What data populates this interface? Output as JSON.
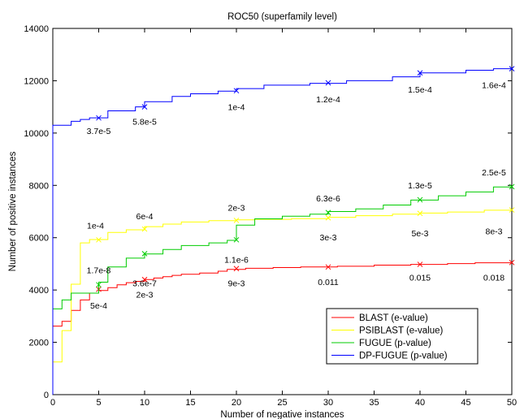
{
  "chart_data": {
    "type": "line",
    "title": "ROC50 (superfamily level)",
    "xlabel": "Number of negative instances",
    "ylabel": "Number of positive instances",
    "xlim": [
      0,
      50
    ],
    "ylim": [
      0,
      14000
    ],
    "xticks": [
      "0",
      "5",
      "10",
      "15",
      "20",
      "25",
      "30",
      "35",
      "40",
      "45",
      "50"
    ],
    "yticks": [
      "0",
      "2000",
      "4000",
      "6000",
      "8000",
      "10000",
      "12000",
      "14000"
    ],
    "grid": false,
    "legend_position": "lower-right",
    "series": [
      {
        "name": "BLAST (e-value)",
        "color": "#ff0000",
        "points": [
          [
            0,
            0
          ],
          [
            0,
            2620
          ],
          [
            1,
            2620
          ],
          [
            1,
            2800
          ],
          [
            2,
            2800
          ],
          [
            2,
            3220
          ],
          [
            3,
            3220
          ],
          [
            3,
            3620
          ],
          [
            4,
            3620
          ],
          [
            4,
            3880
          ],
          [
            5,
            3880
          ],
          [
            5,
            3980
          ],
          [
            6,
            3980
          ],
          [
            6,
            4090
          ],
          [
            7,
            4090
          ],
          [
            7,
            4200
          ],
          [
            8,
            4200
          ],
          [
            8,
            4280
          ],
          [
            9,
            4280
          ],
          [
            9,
            4330
          ],
          [
            10,
            4330
          ],
          [
            10,
            4400
          ],
          [
            11,
            4400
          ],
          [
            11,
            4460
          ],
          [
            12,
            4460
          ],
          [
            12,
            4510
          ],
          [
            13,
            4510
          ],
          [
            13,
            4560
          ],
          [
            14,
            4560
          ],
          [
            14,
            4600
          ],
          [
            16,
            4600
          ],
          [
            16,
            4650
          ],
          [
            18,
            4650
          ],
          [
            18,
            4720
          ],
          [
            19,
            4720
          ],
          [
            19,
            4790
          ],
          [
            21,
            4790
          ],
          [
            21,
            4830
          ],
          [
            24,
            4830
          ],
          [
            24,
            4860
          ],
          [
            27,
            4860
          ],
          [
            27,
            4880
          ],
          [
            31,
            4880
          ],
          [
            31,
            4910
          ],
          [
            35,
            4910
          ],
          [
            35,
            4950
          ],
          [
            39,
            4950
          ],
          [
            39,
            4980
          ],
          [
            43,
            4980
          ],
          [
            43,
            5010
          ],
          [
            46,
            5010
          ],
          [
            46,
            5040
          ],
          [
            50,
            5040
          ]
        ],
        "markers": [
          {
            "x": 5,
            "y": 4030,
            "label": "5e-4"
          },
          {
            "x": 10,
            "y": 4400,
            "label": "2e-3"
          },
          {
            "x": 20,
            "y": 4820,
            "label": "9e-3"
          },
          {
            "x": 30,
            "y": 4880,
            "label": "0.011"
          },
          {
            "x": 40,
            "y": 4980,
            "label": "0.015"
          },
          {
            "x": 50,
            "y": 5050,
            "label": "0.018"
          }
        ]
      },
      {
        "name": "PSIBLAST (e-value)",
        "color": "#ffff00",
        "points": [
          [
            0,
            0
          ],
          [
            0,
            1250
          ],
          [
            1,
            1250
          ],
          [
            1,
            2450
          ],
          [
            2,
            2450
          ],
          [
            2,
            4220
          ],
          [
            3,
            4220
          ],
          [
            3,
            5800
          ],
          [
            4,
            5800
          ],
          [
            4,
            5930
          ],
          [
            6,
            5930
          ],
          [
            6,
            6200
          ],
          [
            8,
            6200
          ],
          [
            8,
            6300
          ],
          [
            10,
            6300
          ],
          [
            10,
            6420
          ],
          [
            12,
            6420
          ],
          [
            12,
            6520
          ],
          [
            14,
            6520
          ],
          [
            14,
            6600
          ],
          [
            17,
            6600
          ],
          [
            17,
            6650
          ],
          [
            20,
            6650
          ],
          [
            20,
            6680
          ],
          [
            22,
            6680
          ],
          [
            22,
            6700
          ],
          [
            26,
            6700
          ],
          [
            26,
            6730
          ],
          [
            30,
            6730
          ],
          [
            30,
            6780
          ],
          [
            33,
            6780
          ],
          [
            33,
            6840
          ],
          [
            37,
            6840
          ],
          [
            37,
            6900
          ],
          [
            40,
            6900
          ],
          [
            40,
            6940
          ],
          [
            43,
            6940
          ],
          [
            43,
            6980
          ],
          [
            47,
            6980
          ],
          [
            47,
            7050
          ],
          [
            50,
            7050
          ]
        ],
        "markers": [
          {
            "x": 5,
            "y": 5920,
            "label": "1e-4"
          },
          {
            "x": 10,
            "y": 6330,
            "label": "6e-4"
          },
          {
            "x": 20,
            "y": 6660,
            "label": "2e-3"
          },
          {
            "x": 30,
            "y": 6760,
            "label": "3e-3"
          },
          {
            "x": 40,
            "y": 6930,
            "label": "5e-3"
          },
          {
            "x": 50,
            "y": 7060,
            "label": "8e-3"
          }
        ]
      },
      {
        "name": "FUGUE (p-value)",
        "color": "#00cc00",
        "points": [
          [
            0,
            0
          ],
          [
            0,
            3280
          ],
          [
            1,
            3280
          ],
          [
            1,
            3620
          ],
          [
            2,
            3620
          ],
          [
            2,
            3880
          ],
          [
            5,
            3880
          ],
          [
            5,
            4300
          ],
          [
            6,
            4300
          ],
          [
            6,
            4880
          ],
          [
            8,
            4880
          ],
          [
            8,
            5220
          ],
          [
            10,
            5220
          ],
          [
            10,
            5380
          ],
          [
            12,
            5380
          ],
          [
            12,
            5550
          ],
          [
            14,
            5550
          ],
          [
            14,
            5700
          ],
          [
            17,
            5700
          ],
          [
            17,
            5800
          ],
          [
            19,
            5800
          ],
          [
            19,
            5900
          ],
          [
            20,
            5900
          ],
          [
            20,
            6480
          ],
          [
            22,
            6480
          ],
          [
            22,
            6720
          ],
          [
            25,
            6720
          ],
          [
            25,
            6820
          ],
          [
            28,
            6820
          ],
          [
            28,
            6900
          ],
          [
            30,
            6900
          ],
          [
            30,
            7000
          ],
          [
            33,
            7000
          ],
          [
            33,
            7100
          ],
          [
            36,
            7100
          ],
          [
            36,
            7250
          ],
          [
            39,
            7250
          ],
          [
            39,
            7440
          ],
          [
            42,
            7440
          ],
          [
            42,
            7600
          ],
          [
            45,
            7600
          ],
          [
            45,
            7750
          ],
          [
            48,
            7750
          ],
          [
            48,
            7940
          ],
          [
            50,
            7940
          ]
        ],
        "markers": [
          {
            "x": 5,
            "y": 4200,
            "label": "1.7e-8"
          },
          {
            "x": 10,
            "y": 5390,
            "label": "3.6e-7"
          },
          {
            "x": 20,
            "y": 5920,
            "label": "1.1e-6"
          },
          {
            "x": 30,
            "y": 6960,
            "label": "6.3e-6"
          },
          {
            "x": 40,
            "y": 7450,
            "label": "1.3e-5"
          },
          {
            "x": 50,
            "y": 7950,
            "label": "2.5e-5"
          }
        ]
      },
      {
        "name": "DP-FUGUE (p-value)",
        "color": "#0000ff",
        "points": [
          [
            0,
            0
          ],
          [
            0,
            10300
          ],
          [
            2,
            10300
          ],
          [
            2,
            10450
          ],
          [
            3,
            10450
          ],
          [
            3,
            10520
          ],
          [
            4,
            10520
          ],
          [
            4,
            10580
          ],
          [
            6,
            10580
          ],
          [
            6,
            10850
          ],
          [
            9,
            10850
          ],
          [
            9,
            11000
          ],
          [
            10,
            11000
          ],
          [
            10,
            11200
          ],
          [
            13,
            11200
          ],
          [
            13,
            11400
          ],
          [
            15,
            11400
          ],
          [
            15,
            11500
          ],
          [
            18,
            11500
          ],
          [
            18,
            11600
          ],
          [
            20,
            11600
          ],
          [
            20,
            11700
          ],
          [
            23,
            11700
          ],
          [
            23,
            11830
          ],
          [
            28,
            11830
          ],
          [
            28,
            11900
          ],
          [
            32,
            11900
          ],
          [
            32,
            12000
          ],
          [
            37,
            12000
          ],
          [
            37,
            12150
          ],
          [
            40,
            12150
          ],
          [
            40,
            12300
          ],
          [
            45,
            12300
          ],
          [
            45,
            12400
          ],
          [
            48,
            12400
          ],
          [
            48,
            12460
          ],
          [
            50,
            12460
          ]
        ],
        "markers": [
          {
            "x": 5,
            "y": 10580,
            "label": "3.7e-5"
          },
          {
            "x": 10,
            "y": 11000,
            "label": "5.8e-5"
          },
          {
            "x": 20,
            "y": 11620,
            "label": "1e-4"
          },
          {
            "x": 30,
            "y": 11920,
            "label": "1.2e-4"
          },
          {
            "x": 40,
            "y": 12300,
            "label": "1.5e-4"
          },
          {
            "x": 50,
            "y": 12460,
            "label": "1.6e-4"
          }
        ]
      }
    ]
  }
}
